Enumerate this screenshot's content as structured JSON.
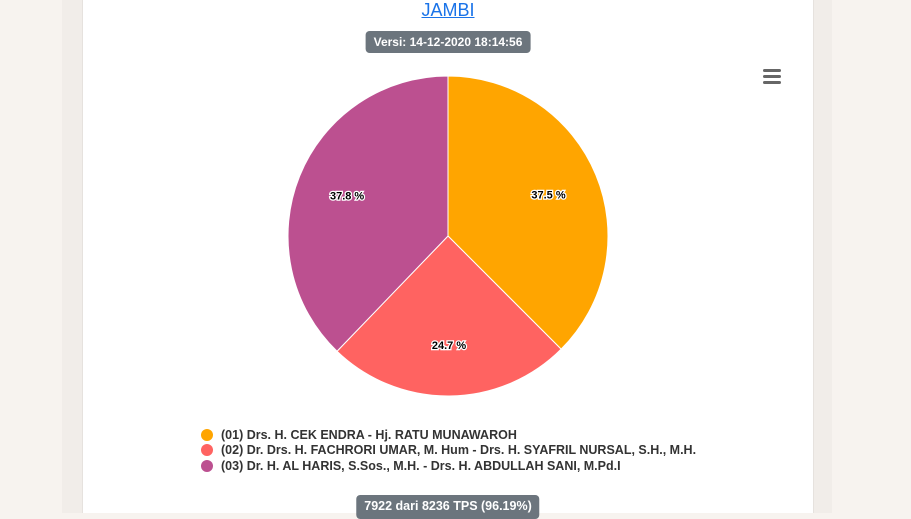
{
  "header": {
    "region": "JAMBI",
    "version": "Versi: 14-12-2020 18:14:56"
  },
  "menu": {
    "icon": "hamburger-menu-icon"
  },
  "chart_data": {
    "type": "pie",
    "slices": [
      {
        "label": "(01) Drs. H. CEK ENDRA - Hj. RATU MUNAWAROH",
        "value": 37.5,
        "display": "37.5 %",
        "color": "#ffa500"
      },
      {
        "label": "(02) Dr. Drs. H. FACHRORI UMAR, M. Hum - Drs. H. SYAFRIL NURSAL, S.H., M.H.",
        "value": 24.7,
        "display": "24.7 %",
        "color": "#ff6361"
      },
      {
        "label": "(03) Dr. H. AL HARIS, S.Sos., M.H. - Drs. H. ABDULLAH SANI, M.Pd.I",
        "value": 37.8,
        "display": "37.8 %",
        "color": "#bc5090"
      }
    ],
    "legend_position": "bottom-left"
  },
  "footer": {
    "tps": "7922 dari 8236 TPS (96.19%)"
  }
}
